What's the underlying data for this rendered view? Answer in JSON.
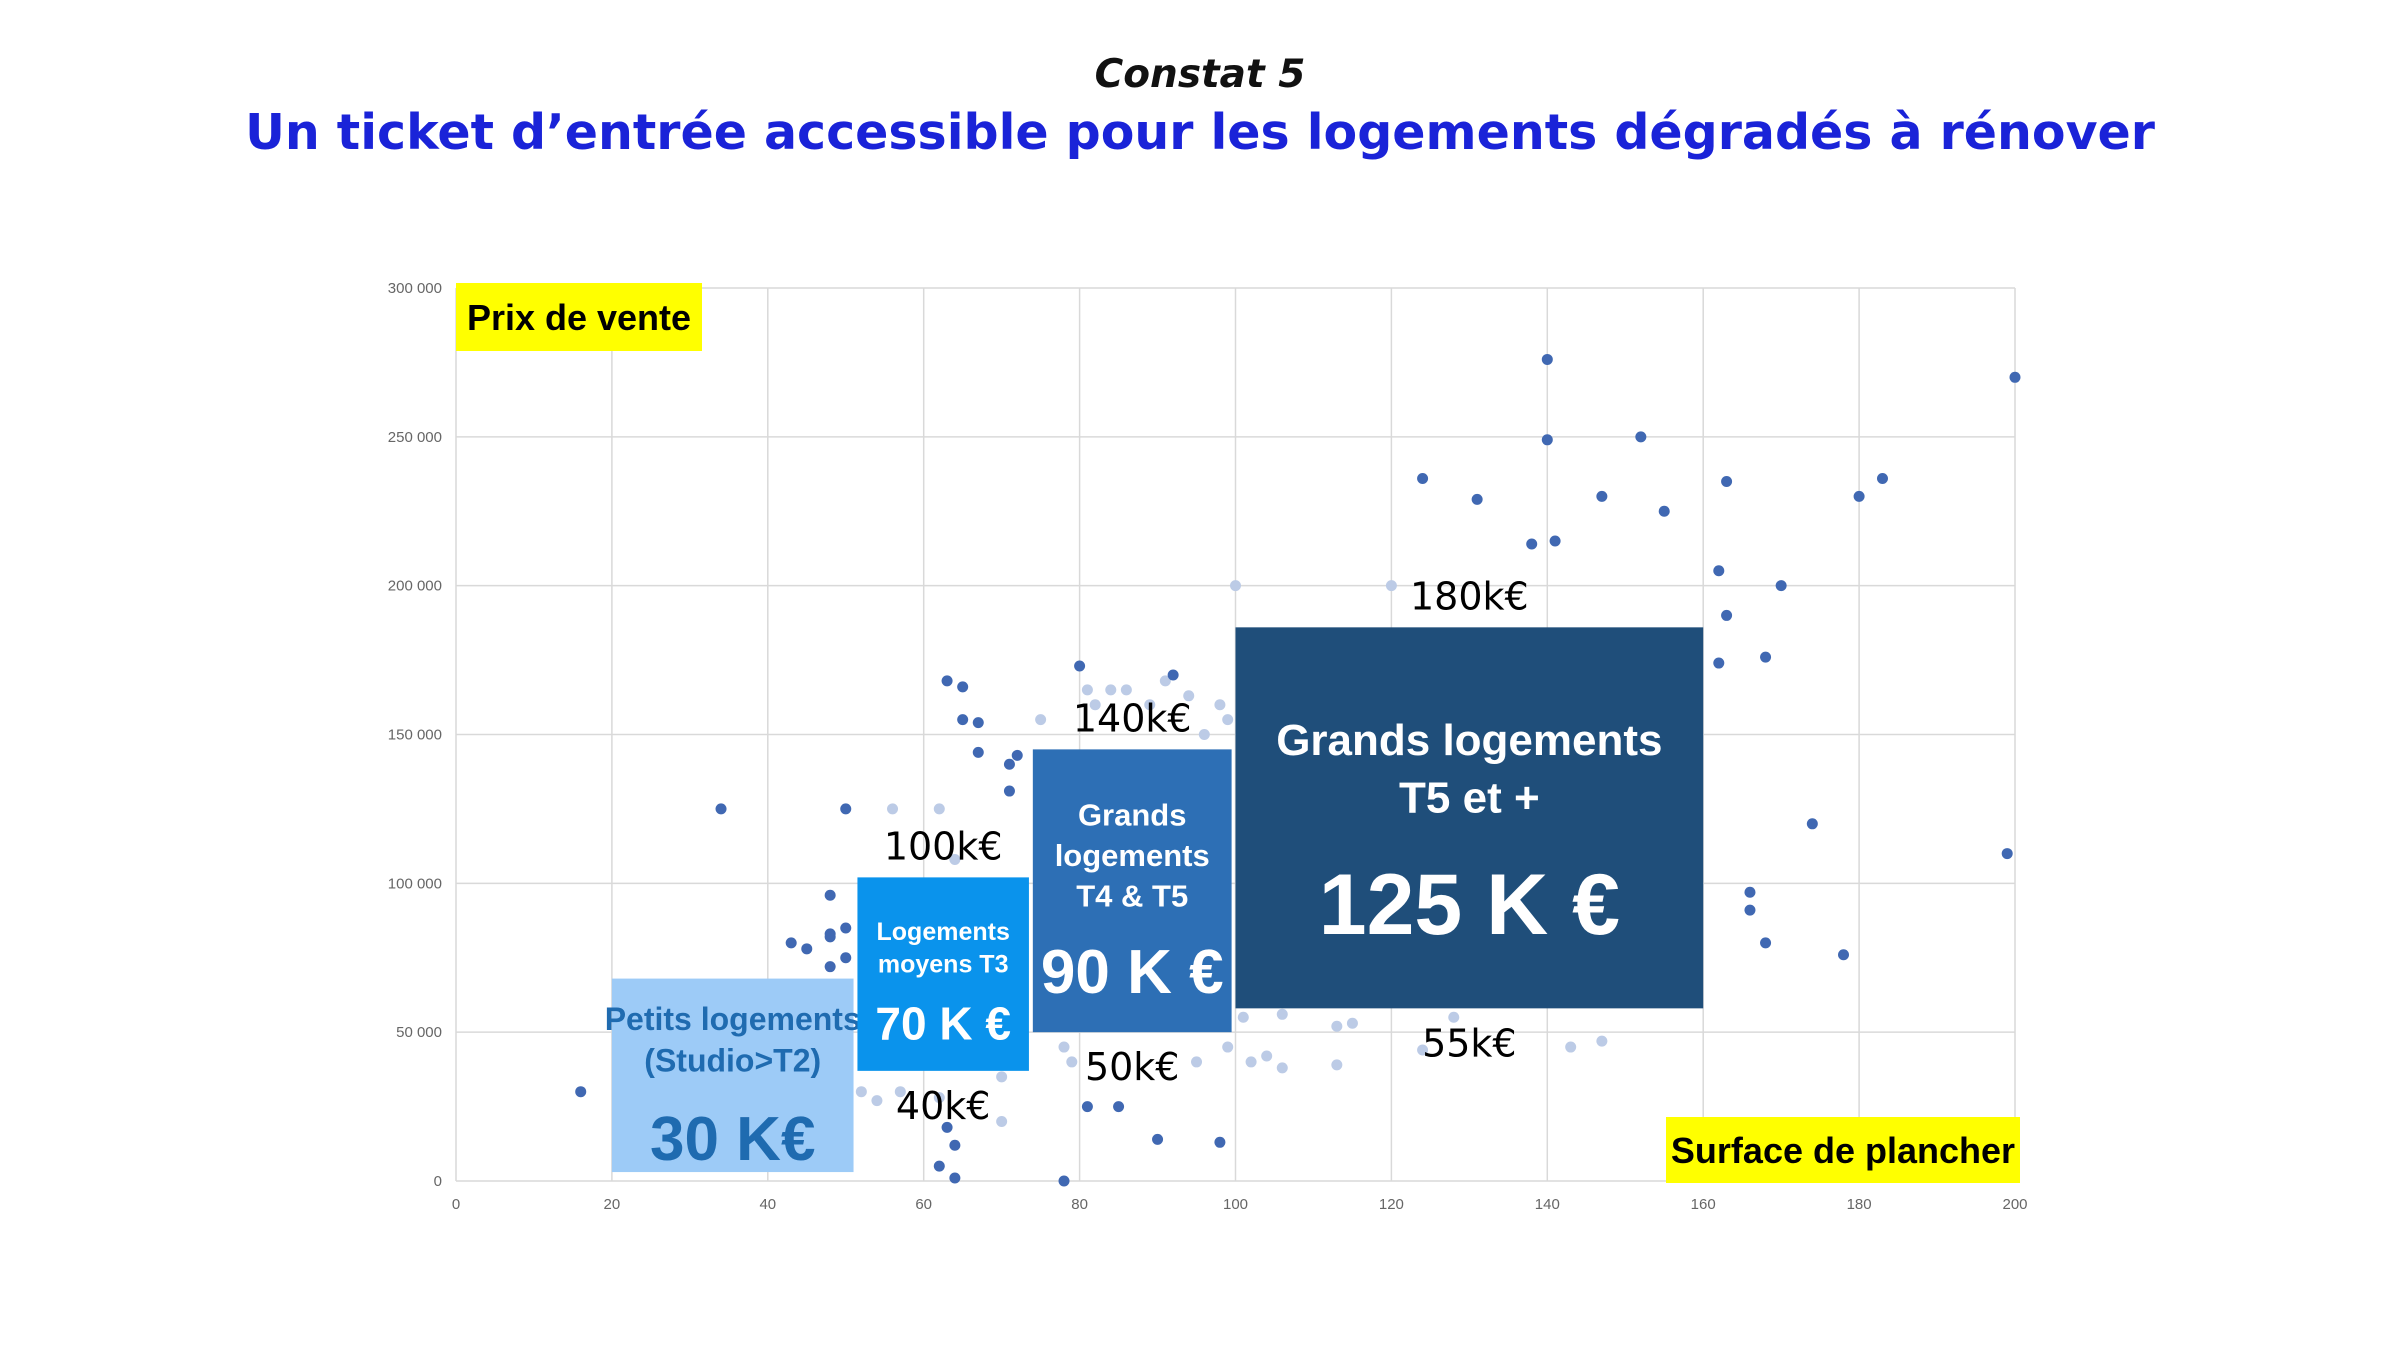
{
  "header": {
    "kicker": "Constat 5",
    "title": "Un ticket d’entrée accessible pour les logements dégradés à rénover"
  },
  "chart_data": {
    "type": "scatter",
    "title": "",
    "xlabel": "Surface de plancher",
    "ylabel": "Prix de vente",
    "xlim": [
      0,
      200
    ],
    "ylim": [
      0,
      300000
    ],
    "x_ticks": [
      "0",
      "20",
      "40",
      "60",
      "80",
      "100",
      "120",
      "140",
      "160",
      "180",
      "200"
    ],
    "y_ticks": [
      "0",
      "50 000",
      "100 000",
      "150 000",
      "200 000",
      "250 000",
      "300 000"
    ],
    "grid": true,
    "colors": {
      "points": "#4068b2",
      "points_faded": "#bccbe6",
      "label_bg": "#ffff00",
      "grid": "#d9d9d9"
    },
    "points": [
      [
        16,
        30000
      ],
      [
        34,
        125000
      ],
      [
        43,
        80000
      ],
      [
        45,
        78000
      ],
      [
        48,
        96000
      ],
      [
        48,
        83000
      ],
      [
        48,
        82000
      ],
      [
        48,
        72000
      ],
      [
        50,
        125000
      ],
      [
        50,
        85000
      ],
      [
        50,
        75000
      ],
      [
        62,
        5000
      ],
      [
        63,
        18000
      ],
      [
        64,
        12000
      ],
      [
        64,
        1000
      ],
      [
        63,
        168000
      ],
      [
        65,
        166000
      ],
      [
        65,
        155000
      ],
      [
        67,
        154000
      ],
      [
        67,
        144000
      ],
      [
        71,
        140000
      ],
      [
        71,
        131000
      ],
      [
        72,
        143000
      ],
      [
        80,
        173000
      ],
      [
        92,
        170000
      ],
      [
        90,
        14000
      ],
      [
        98,
        13000
      ],
      [
        78,
        0
      ],
      [
        81,
        25000
      ],
      [
        85,
        25000
      ],
      [
        140,
        276000
      ],
      [
        140,
        249000
      ],
      [
        152,
        250000
      ],
      [
        124,
        236000
      ],
      [
        131,
        229000
      ],
      [
        147,
        230000
      ],
      [
        155,
        225000
      ],
      [
        163,
        235000
      ],
      [
        180,
        230000
      ],
      [
        183,
        236000
      ],
      [
        138,
        214000
      ],
      [
        141,
        215000
      ],
      [
        162,
        205000
      ],
      [
        163,
        190000
      ],
      [
        170,
        200000
      ],
      [
        162,
        174000
      ],
      [
        168,
        176000
      ],
      [
        174,
        120000
      ],
      [
        166,
        97000
      ],
      [
        166,
        91000
      ],
      [
        168,
        80000
      ],
      [
        178,
        76000
      ],
      [
        199,
        110000
      ],
      [
        200,
        270000
      ]
    ],
    "points_faded": [
      [
        56,
        125000
      ],
      [
        62,
        125000
      ],
      [
        64,
        108000
      ],
      [
        58,
        100000
      ],
      [
        60,
        100000
      ],
      [
        52,
        30000
      ],
      [
        54,
        27000
      ],
      [
        57,
        30000
      ],
      [
        62,
        28000
      ],
      [
        70,
        20000
      ],
      [
        70,
        35000
      ],
      [
        75,
        155000
      ],
      [
        78,
        45000
      ],
      [
        79,
        40000
      ],
      [
        81,
        165000
      ],
      [
        82,
        160000
      ],
      [
        84,
        165000
      ],
      [
        86,
        165000
      ],
      [
        89,
        160000
      ],
      [
        91,
        168000
      ],
      [
        94,
        163000
      ],
      [
        96,
        150000
      ],
      [
        98,
        160000
      ],
      [
        99,
        155000
      ],
      [
        95,
        40000
      ],
      [
        99,
        45000
      ],
      [
        101,
        55000
      ],
      [
        102,
        40000
      ],
      [
        104,
        42000
      ],
      [
        106,
        38000
      ],
      [
        106,
        56000
      ],
      [
        113,
        39000
      ],
      [
        113,
        52000
      ],
      [
        115,
        53000
      ],
      [
        100,
        200000
      ],
      [
        120,
        200000
      ],
      [
        124,
        44000
      ],
      [
        128,
        55000
      ],
      [
        143,
        45000
      ],
      [
        147,
        47000
      ]
    ],
    "annotations": [
      {
        "id": "petits",
        "lines": [
          "Petits logements",
          "(Studio>T2)"
        ],
        "value": "30 K€",
        "x_range": [
          20,
          51
        ],
        "y_range": [
          3000,
          68000
        ],
        "fill": "#9dcbf7",
        "text_color": "#1f6bb0",
        "top_label": "",
        "bottom_label": ""
      },
      {
        "id": "moyens",
        "lines": [
          "Logements",
          "moyens T3"
        ],
        "value": "70 K €",
        "x_range": [
          51.5,
          73.5
        ],
        "y_range": [
          37000,
          102000
        ],
        "fill": "#0a93ec",
        "text_color": "#ffffff",
        "top_label": "100k€",
        "bottom_label": "40k€"
      },
      {
        "id": "grands45",
        "lines": [
          "Grands",
          "logements",
          "T4 & T5"
        ],
        "value": "90 K €",
        "x_range": [
          74,
          99.5
        ],
        "y_range": [
          50000,
          145000
        ],
        "fill": "#2d6fb5",
        "text_color": "#ffffff",
        "top_label": "140k€",
        "bottom_label": "50k€"
      },
      {
        "id": "grands5p",
        "lines": [
          "Grands logements",
          "T5 et +"
        ],
        "value": "125 K €",
        "x_range": [
          100,
          160
        ],
        "y_range": [
          58000,
          186000
        ],
        "fill": "#1f4e7a",
        "text_color": "#ffffff",
        "top_label": "180k€",
        "bottom_label": "55k€"
      }
    ]
  }
}
